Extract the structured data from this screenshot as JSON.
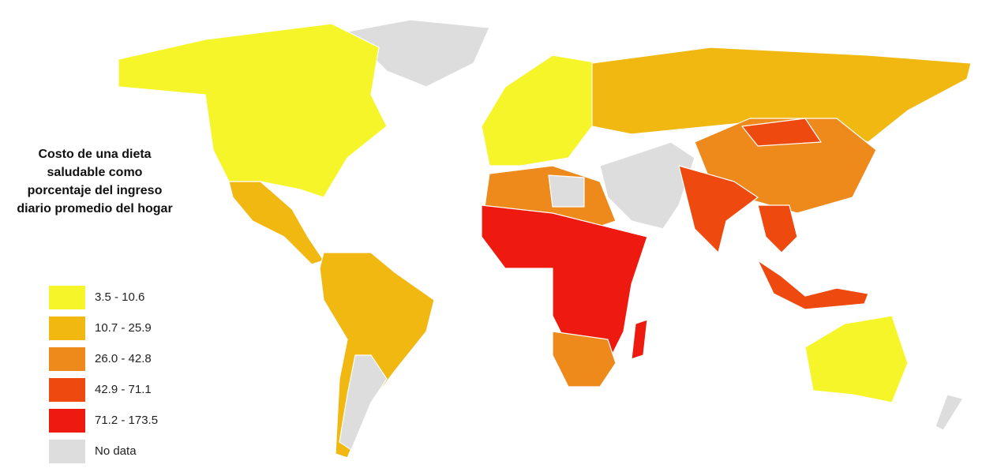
{
  "title": "Costo de una dieta saludable como porcentaje del ingreso diario promedio del hogar",
  "legend": [
    {
      "label": "3.5 - 10.6",
      "color": "#f5f52a"
    },
    {
      "label": "10.7 - 25.9",
      "color": "#f0b810"
    },
    {
      "label": "26.0 - 42.8",
      "color": "#ee8a1c"
    },
    {
      "label": "42.9 - 71.1",
      "color": "#ee4a10"
    },
    {
      "label": "71.2 - 173.5",
      "color": "#ee1a10"
    },
    {
      "label": "No data",
      "color": "#dddddd"
    }
  ]
}
